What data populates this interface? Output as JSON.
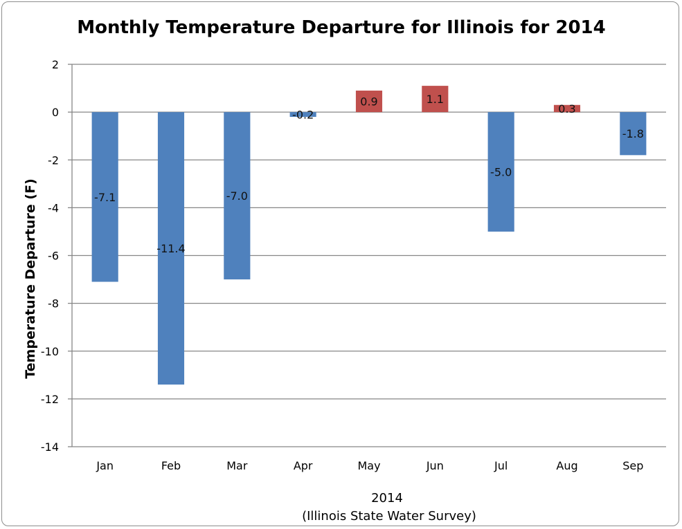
{
  "chart_data": {
    "type": "bar",
    "title": "Monthly Temperature Departure for Illinois for 2014",
    "ylabel": "Temperature Departure (F)",
    "xlabel": "2014",
    "xlabel_sub": "(Illinois State Water Survey)",
    "categories": [
      "Jan",
      "Feb",
      "Mar",
      "Apr",
      "May",
      "Jun",
      "Jul",
      "Aug",
      "Sep"
    ],
    "values": [
      -7.1,
      -11.4,
      -7.0,
      -0.2,
      0.9,
      1.1,
      -5.0,
      0.3,
      -1.8
    ],
    "data_labels": [
      "-7.1",
      "-11.4",
      "-7.0",
      "-0.2",
      "0.9",
      "1.1",
      "-5.0",
      "0.3",
      "-1.8"
    ],
    "ylim": [
      -14,
      2
    ],
    "yticks": [
      2,
      0,
      -2,
      -4,
      -6,
      -8,
      -10,
      -12,
      -14
    ],
    "grid": true,
    "legend": "none",
    "colors": {
      "negative": "#4f81bd",
      "positive": "#c0504d"
    }
  }
}
